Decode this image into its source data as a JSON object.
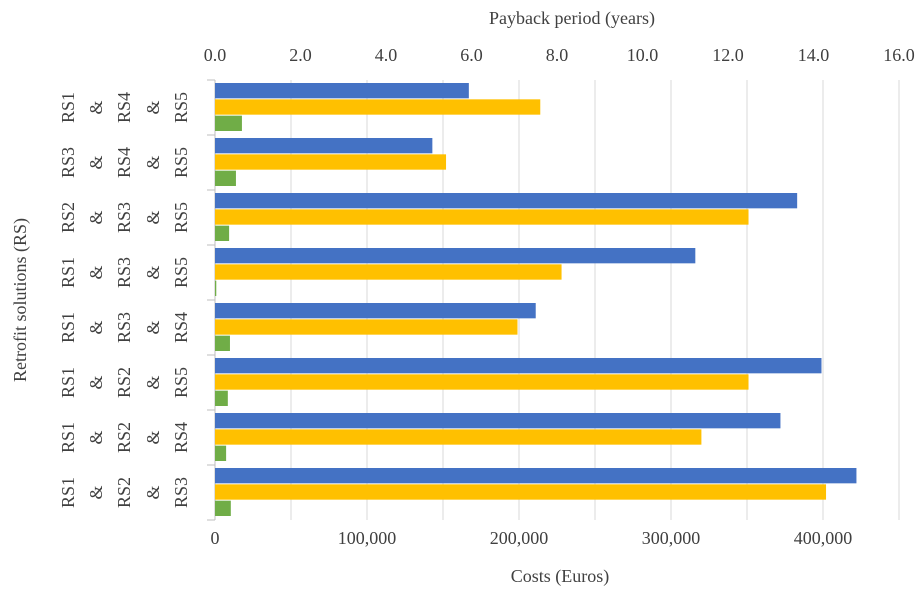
{
  "chart_data": {
    "type": "hbar",
    "x2label": "Payback period (years)",
    "xlabel": "Costs (Euros)",
    "ylabel": "Retrofit solutions (RS)",
    "categories": [
      [
        "RS1",
        "&",
        "RS4",
        "&",
        "RS5"
      ],
      [
        "RS3",
        "&",
        "RS4",
        "&",
        "RS5"
      ],
      [
        "RS2",
        "&",
        "RS3",
        "&",
        "RS5"
      ],
      [
        "RS1",
        "&",
        "RS3",
        "&",
        "RS5"
      ],
      [
        "RS1",
        "&",
        "RS3",
        "&",
        "RS4"
      ],
      [
        "RS1",
        "&",
        "RS2",
        "&",
        "RS5"
      ],
      [
        "RS1",
        "&",
        "RS2",
        "&",
        "RS4"
      ],
      [
        "RS1",
        "&",
        "RS2",
        "&",
        "RS3"
      ]
    ],
    "series": [
      {
        "color": "#4472c4",
        "values": [
          167000,
          143000,
          383000,
          316000,
          211000,
          399000,
          372000,
          422000
        ]
      },
      {
        "color": "#ffc000",
        "values": [
          214000,
          152000,
          351000,
          228000,
          199000,
          351000,
          320000,
          402000
        ]
      },
      {
        "color": "#70ad47",
        "axis": "x2",
        "values": [
          0.63,
          0.49,
          0.33,
          0.03,
          0.35,
          0.3,
          0.26,
          0.37
        ]
      }
    ],
    "xlim": [
      0,
      450000
    ],
    "xticks": [
      {
        "value": 0,
        "label": "0"
      },
      {
        "value": 100000,
        "label": "100,000"
      },
      {
        "value": 200000,
        "label": "200,000"
      },
      {
        "value": 300000,
        "label": "300,000"
      },
      {
        "value": 400000,
        "label": "400,000"
      }
    ],
    "xgrid": [
      50000,
      100000,
      150000,
      200000,
      250000,
      300000,
      350000,
      400000,
      450000
    ],
    "x2lim": [
      0,
      16
    ],
    "x2ticks": [
      {
        "value": 0,
        "label": "0.0"
      },
      {
        "value": 2,
        "label": "2.0"
      },
      {
        "value": 4,
        "label": "4.0"
      },
      {
        "value": 6,
        "label": "6.0"
      },
      {
        "value": 8,
        "label": "8.0"
      },
      {
        "value": 10,
        "label": "10.0"
      },
      {
        "value": 12,
        "label": "12.0"
      },
      {
        "value": 14,
        "label": "14.0"
      },
      {
        "value": 16,
        "label": "16.0"
      }
    ]
  }
}
